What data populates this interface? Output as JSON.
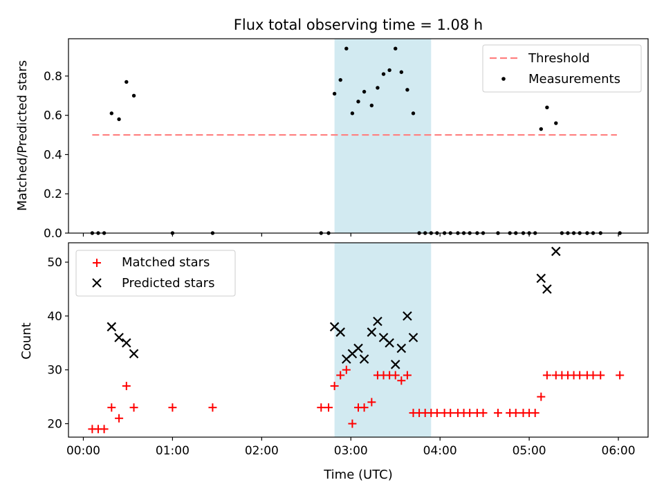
{
  "title": "Flux total observing time = 1.08 h",
  "colors": {
    "threshold": "#ff7f7f",
    "measurement": "#000000",
    "matched": "#ff0000",
    "predicted": "#000000",
    "span": "#add8e6"
  },
  "chart_data": [
    {
      "type": "scatter",
      "ylabel": "Matched/Predicted stars",
      "xlabel": "",
      "xlim": [
        "23:50",
        "06:20"
      ],
      "ylim": [
        0,
        0.99
      ],
      "y_ticks": [
        "0.0",
        "0.2",
        "0.4",
        "0.6",
        "0.8"
      ],
      "x_ticks": [
        "00:00",
        "01:00",
        "02:00",
        "03:00",
        "04:00",
        "05:00",
        "06:00"
      ],
      "highlight_span": [
        "02:49",
        "03:54"
      ],
      "legend": {
        "position": "upper right",
        "entries": [
          "Threshold",
          "Measurements"
        ]
      },
      "threshold": {
        "name": "Threshold",
        "value": 0.5,
        "x_range": [
          "00:06",
          "05:59"
        ]
      },
      "series": [
        {
          "name": "Measurements",
          "x": [
            "00:06",
            "00:10",
            "00:14",
            "00:19",
            "00:24",
            "00:29",
            "00:34",
            "01:00",
            "01:27",
            "02:40",
            "02:45",
            "02:49",
            "02:53",
            "02:57",
            "03:01",
            "03:05",
            "03:09",
            "03:14",
            "03:18",
            "03:22",
            "03:26",
            "03:30",
            "03:34",
            "03:38",
            "03:42",
            "03:46",
            "03:50",
            "03:54",
            "03:58",
            "04:03",
            "04:07",
            "04:12",
            "04:16",
            "04:20",
            "04:25",
            "04:29",
            "04:39",
            "04:47",
            "04:51",
            "04:56",
            "05:00",
            "05:04",
            "05:08",
            "05:12",
            "05:18",
            "05:22",
            "05:26",
            "05:30",
            "05:34",
            "05:39",
            "05:43",
            "05:48",
            "06:01"
          ],
          "y": [
            0,
            0,
            0,
            0.61,
            0.58,
            0.77,
            0.7,
            0,
            0,
            0,
            0,
            0.71,
            0.78,
            0.94,
            0.61,
            0.67,
            0.72,
            0.65,
            0.74,
            0.81,
            0.83,
            0.94,
            0.82,
            0.73,
            0.61,
            0,
            0,
            0,
            0,
            0,
            0,
            0,
            0,
            0,
            0,
            0,
            0,
            0,
            0,
            0,
            0,
            0,
            0.53,
            0.64,
            0.56,
            0,
            0,
            0,
            0,
            0,
            0,
            0,
            0
          ]
        }
      ]
    },
    {
      "type": "scatter",
      "ylabel": "Count",
      "xlabel": "Time (UTC)",
      "xlim": [
        "23:50",
        "06:20"
      ],
      "ylim": [
        17.5,
        53.6
      ],
      "y_ticks": [
        "20",
        "30",
        "40",
        "50"
      ],
      "x_ticks": [
        "00:00",
        "01:00",
        "02:00",
        "03:00",
        "04:00",
        "05:00",
        "06:00"
      ],
      "highlight_span": [
        "02:49",
        "03:54"
      ],
      "legend": {
        "position": "upper left",
        "entries": [
          "Matched stars",
          "Predicted stars"
        ]
      },
      "series": [
        {
          "name": "Matched stars",
          "x": [
            "00:06",
            "00:10",
            "00:14",
            "00:19",
            "00:24",
            "00:29",
            "00:34",
            "01:00",
            "01:27",
            "02:40",
            "02:45",
            "02:49",
            "02:53",
            "02:57",
            "03:01",
            "03:05",
            "03:09",
            "03:14",
            "03:18",
            "03:22",
            "03:26",
            "03:30",
            "03:34",
            "03:38",
            "03:42",
            "03:46",
            "03:50",
            "03:54",
            "03:58",
            "04:03",
            "04:07",
            "04:12",
            "04:16",
            "04:20",
            "04:25",
            "04:29",
            "04:39",
            "04:47",
            "04:51",
            "04:56",
            "05:00",
            "05:04",
            "05:08",
            "05:12",
            "05:18",
            "05:22",
            "05:26",
            "05:30",
            "05:34",
            "05:39",
            "05:43",
            "05:48",
            "06:01"
          ],
          "y": [
            19,
            19,
            19,
            23,
            21,
            27,
            23,
            23,
            23,
            23,
            23,
            27,
            29,
            30,
            20,
            23,
            23,
            24,
            29,
            29,
            29,
            29,
            28,
            29,
            22,
            22,
            22,
            22,
            22,
            22,
            22,
            22,
            22,
            22,
            22,
            22,
            22,
            22,
            22,
            22,
            22,
            22,
            25,
            29,
            29,
            29,
            29,
            29,
            29,
            29,
            29,
            29,
            29
          ]
        },
        {
          "name": "Predicted stars",
          "x": [
            "00:19",
            "00:24",
            "00:29",
            "00:34",
            "02:49",
            "02:53",
            "02:57",
            "03:01",
            "03:05",
            "03:09",
            "03:14",
            "03:18",
            "03:22",
            "03:26",
            "03:30",
            "03:34",
            "03:38",
            "03:42",
            "05:08",
            "05:12",
            "05:18"
          ],
          "y": [
            38,
            36,
            35,
            33,
            38,
            37,
            32,
            33,
            34,
            32,
            37,
            39,
            36,
            35,
            31,
            34,
            40,
            36,
            47,
            45,
            52
          ]
        }
      ]
    }
  ]
}
